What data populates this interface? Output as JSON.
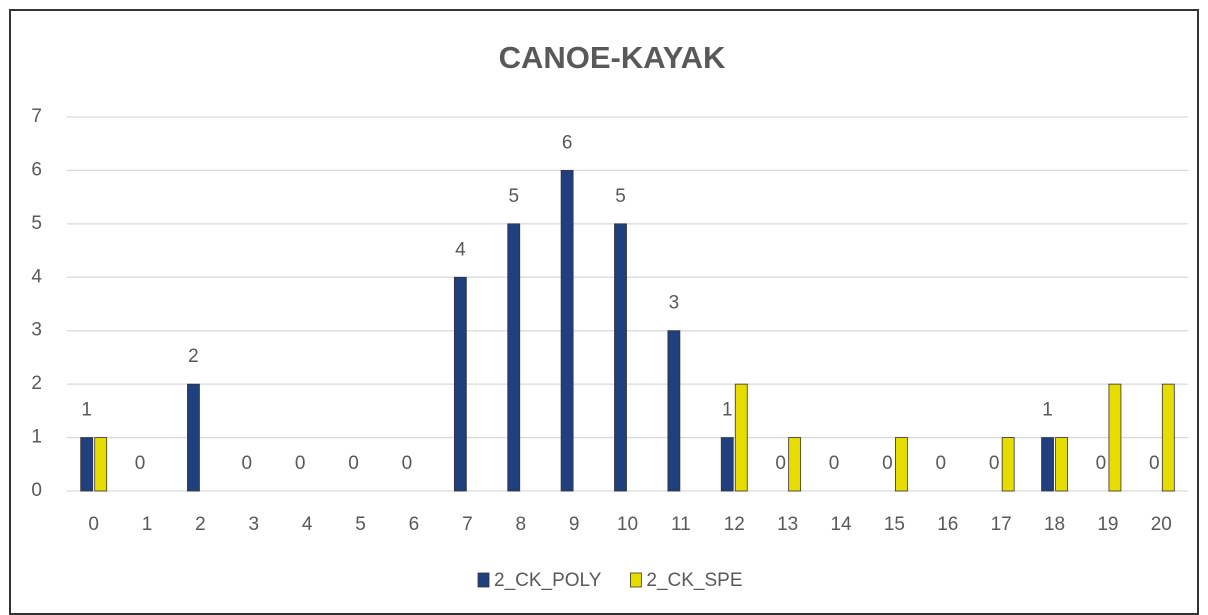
{
  "chart_data": {
    "type": "bar",
    "title": "CANOE-KAYAK",
    "categories": [
      "0",
      "1",
      "2",
      "3",
      "4",
      "5",
      "6",
      "7",
      "8",
      "9",
      "10",
      "11",
      "12",
      "13",
      "14",
      "15",
      "16",
      "17",
      "18",
      "19",
      "20"
    ],
    "series": [
      {
        "name": "2_CK_POLY",
        "color": "#1f3f7f",
        "values": [
          1,
          0,
          2,
          0,
          0,
          0,
          0,
          4,
          5,
          6,
          5,
          3,
          1,
          0,
          0,
          0,
          0,
          0,
          1,
          0,
          0
        ],
        "data_labels": true
      },
      {
        "name": "2_CK_SPE",
        "color": "#e6dc00",
        "values": [
          1,
          0,
          0,
          0,
          0,
          0,
          0,
          0,
          0,
          0,
          0,
          0,
          2,
          1,
          0,
          1,
          0,
          1,
          1,
          2,
          2
        ],
        "data_labels": false
      }
    ],
    "ylim": [
      0,
      7
    ],
    "yticks": [
      0,
      1,
      2,
      3,
      4,
      5,
      6,
      7
    ],
    "grid": true,
    "legend": "bottom"
  }
}
